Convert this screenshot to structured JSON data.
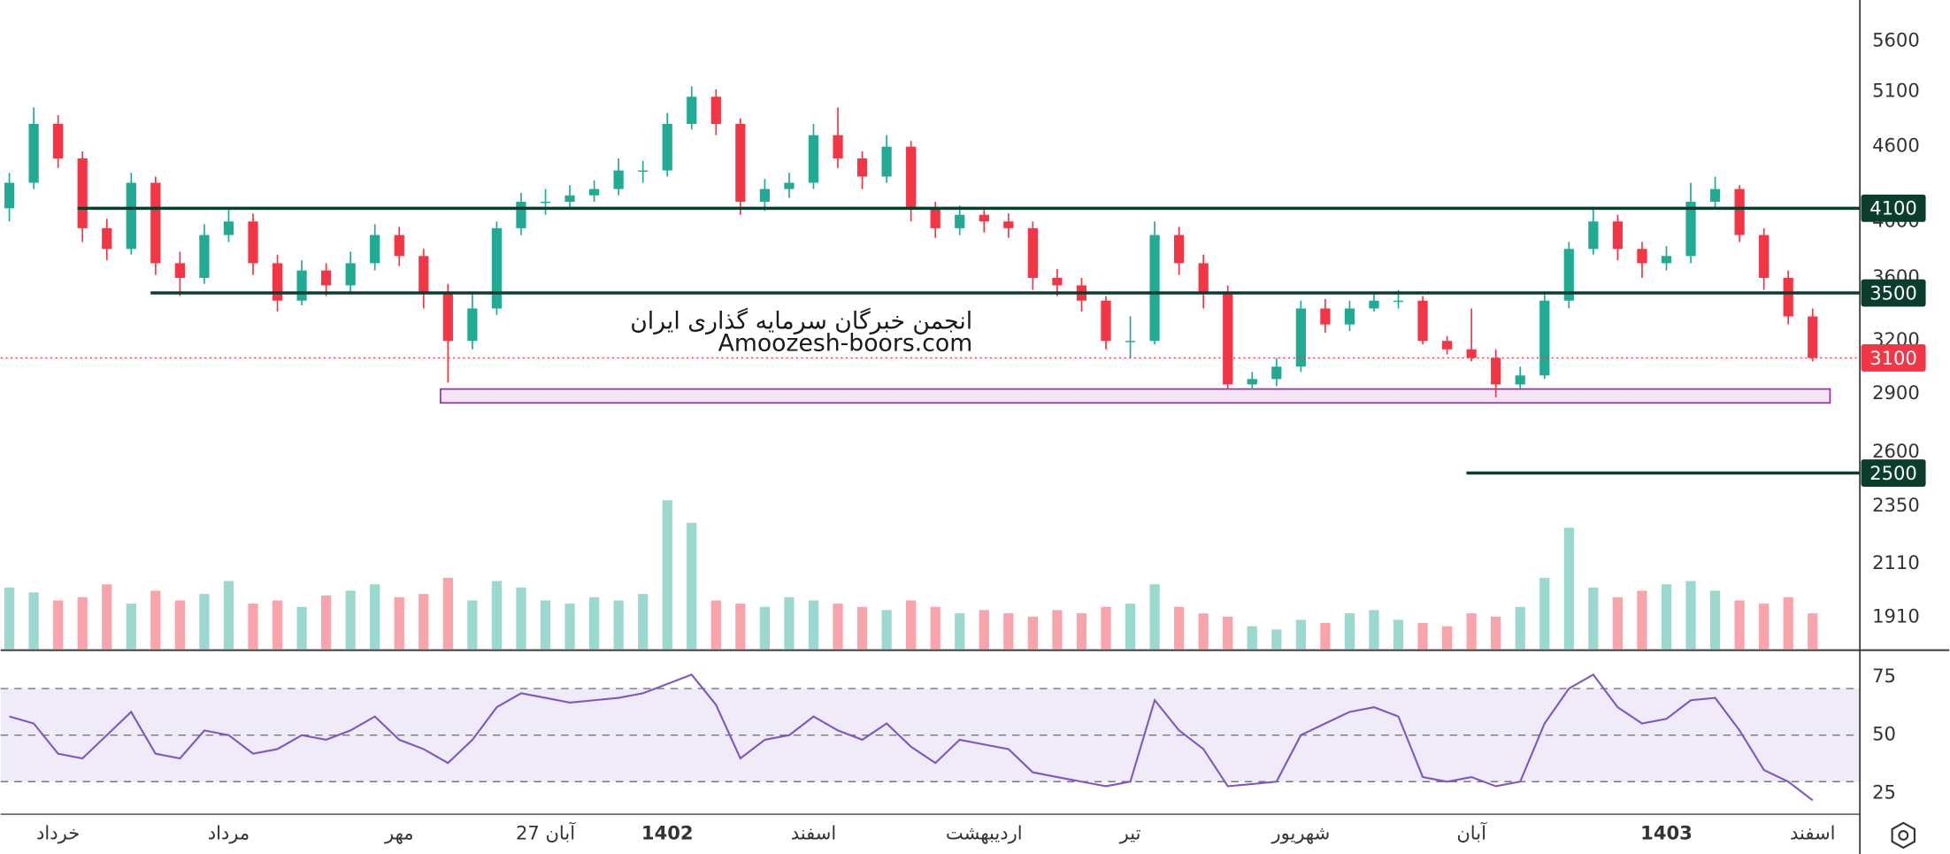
{
  "chart_data": {
    "type": "candlestick",
    "watermark": [
      "انجمن خبرگان سرمایه گذاری ایران",
      "Amoozesh-boors.com"
    ],
    "categories": [
      null,
      null,
      "خرداد",
      null,
      null,
      null,
      null,
      null,
      null,
      "مرداد",
      null,
      null,
      null,
      null,
      null,
      null,
      "مهر",
      null,
      null,
      null,
      null,
      null,
      "27 آبان",
      null,
      null,
      null,
      null,
      "1402",
      null,
      null,
      null,
      null,
      null,
      "اسفند",
      null,
      null,
      null,
      null,
      null,
      null,
      "اردیبهشت",
      null,
      null,
      null,
      null,
      null,
      "تیر",
      null,
      null,
      null,
      null,
      null,
      null,
      "شهریور",
      null,
      null,
      null,
      null,
      null,
      null,
      "آبان",
      null,
      null,
      null,
      null,
      null,
      null,
      null,
      "1403",
      null,
      null,
      null,
      null,
      null,
      "اسفند"
    ],
    "open": [
      4100,
      4300,
      4800,
      4500,
      3950,
      3800,
      4300,
      3700,
      3600,
      3900,
      4000,
      3700,
      3450,
      3650,
      3550,
      3700,
      3900,
      3750,
      3500,
      3200,
      3400,
      3950,
      4150,
      4150,
      4200,
      4250,
      4400,
      4400,
      4800,
      5050,
      4800,
      4150,
      4250,
      4300,
      4700,
      4500,
      4350,
      4600,
      4100,
      3950,
      4050,
      4000,
      3950,
      3600,
      3550,
      3450,
      3200,
      3200,
      3900,
      3700,
      3500,
      2950,
      2980,
      3050,
      3400,
      3300,
      3400,
      3450,
      3450,
      3200,
      3150,
      3100,
      2950,
      3000,
      3450,
      3800,
      4000,
      3800,
      3700,
      3750,
      4150,
      4250,
      3900,
      3600,
      3350
    ],
    "high": [
      4380,
      4950,
      4880,
      4560,
      4020,
      4380,
      4350,
      3780,
      3980,
      4100,
      4060,
      3760,
      3720,
      3700,
      3780,
      3980,
      3960,
      3800,
      3560,
      3500,
      4000,
      4220,
      4250,
      4280,
      4320,
      4500,
      4480,
      4900,
      5150,
      5120,
      4850,
      4330,
      4380,
      4800,
      4950,
      4560,
      4700,
      4650,
      4150,
      4120,
      4100,
      4060,
      4000,
      3660,
      3600,
      3480,
      3350,
      4000,
      3960,
      3760,
      3550,
      3020,
      3100,
      3450,
      3460,
      3450,
      3500,
      3520,
      3480,
      3230,
      3400,
      3150,
      3050,
      3500,
      3850,
      4100,
      4050,
      3850,
      3820,
      4300,
      4350,
      4280,
      3950,
      3650,
      3400
    ],
    "low": [
      4000,
      4250,
      4420,
      3850,
      3720,
      3760,
      3620,
      3480,
      3560,
      3850,
      3620,
      3380,
      3420,
      3480,
      3500,
      3650,
      3680,
      3400,
      2960,
      3150,
      3360,
      3900,
      4050,
      4100,
      4150,
      4200,
      4300,
      4350,
      4750,
      4700,
      4050,
      4080,
      4180,
      4250,
      4420,
      4250,
      4300,
      4000,
      3880,
      3900,
      3920,
      3880,
      3520,
      3480,
      3380,
      3150,
      3100,
      3180,
      3620,
      3400,
      2920,
      2920,
      2940,
      3020,
      3250,
      3260,
      3380,
      3400,
      3180,
      3120,
      3080,
      2880,
      2930,
      2980,
      3400,
      3760,
      3720,
      3600,
      3650,
      3700,
      4100,
      3850,
      3520,
      3300,
      3080
    ],
    "close": [
      4300,
      4800,
      4500,
      3950,
      3800,
      4300,
      3700,
      3600,
      3900,
      4000,
      3700,
      3450,
      3650,
      3550,
      3700,
      3900,
      3750,
      3500,
      3200,
      3400,
      3950,
      4150,
      4150,
      4200,
      4250,
      4400,
      4400,
      4800,
      5050,
      4800,
      4150,
      4250,
      4300,
      4700,
      4500,
      4350,
      4600,
      4100,
      3950,
      4050,
      4000,
      3950,
      3600,
      3550,
      3450,
      3200,
      3200,
      3900,
      3700,
      3500,
      2950,
      2980,
      3050,
      3400,
      3300,
      3400,
      3450,
      3450,
      3200,
      3150,
      3100,
      2950,
      3000,
      3450,
      3800,
      4000,
      3800,
      3700,
      3750,
      4150,
      4250,
      3900,
      3600,
      3350,
      3100
    ],
    "volume": [
      38,
      35,
      30,
      32,
      40,
      28,
      36,
      30,
      34,
      42,
      28,
      30,
      26,
      33,
      36,
      40,
      32,
      34,
      44,
      30,
      42,
      38,
      30,
      28,
      32,
      30,
      34,
      92,
      78,
      30,
      28,
      26,
      32,
      30,
      28,
      26,
      24,
      30,
      26,
      22,
      24,
      22,
      20,
      24,
      22,
      26,
      28,
      40,
      26,
      22,
      20,
      14,
      12,
      18,
      16,
      22,
      24,
      18,
      16,
      14,
      22,
      20,
      26,
      44,
      75,
      38,
      32,
      36,
      40,
      42,
      36,
      30,
      28,
      32,
      22
    ],
    "volume_lim": [
      0,
      100
    ],
    "up_color": "#22ab94",
    "down_color": "#f23645",
    "log_scale": true,
    "grid": false,
    "ylim": [
      1800,
      6050
    ],
    "yticks": [
      1910,
      2110,
      2350,
      2600,
      2900,
      3200,
      3600,
      4000,
      4600,
      5100,
      5600
    ],
    "levels": [
      {
        "value": 4100,
        "start": 3
      },
      {
        "value": 3500,
        "start": 6
      },
      {
        "value": 2500,
        "start": 60
      }
    ],
    "level_color": "#0b3d2e",
    "last_price": 3100,
    "zone": {
      "low": 2850,
      "high": 2925,
      "start": 18,
      "end": 74,
      "color": "#9c27b0"
    },
    "rsi": {
      "values": [
        58,
        55,
        42,
        40,
        50,
        60,
        42,
        40,
        52,
        50,
        42,
        44,
        50,
        48,
        52,
        58,
        48,
        44,
        38,
        48,
        62,
        68,
        66,
        64,
        65,
        66,
        68,
        72,
        76,
        63,
        40,
        48,
        50,
        58,
        52,
        48,
        55,
        45,
        38,
        48,
        46,
        44,
        34,
        32,
        30,
        28,
        30,
        65,
        52,
        44,
        28,
        29,
        30,
        50,
        55,
        60,
        62,
        58,
        32,
        30,
        32,
        28,
        30,
        55,
        70,
        76,
        62,
        55,
        57,
        65,
        66,
        52,
        35,
        30,
        22
      ],
      "ylim": [
        16,
        86
      ],
      "yticks": [
        25,
        50,
        75
      ],
      "bands": [
        30,
        50,
        70
      ],
      "color": "#7e57c2"
    }
  }
}
